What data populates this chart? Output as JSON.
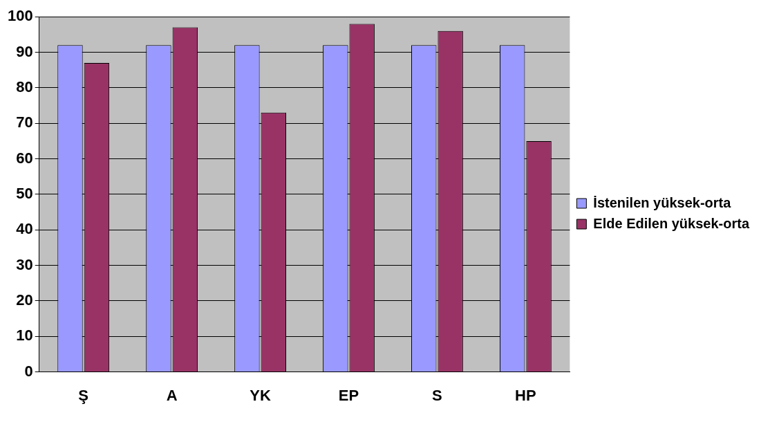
{
  "chart_data": {
    "type": "bar",
    "categories": [
      "Ş",
      "A",
      "YK",
      "EP",
      "S",
      "HP"
    ],
    "series": [
      {
        "name": "İstenilen yüksek-orta",
        "color": "#9999ff",
        "values": [
          92,
          92,
          92,
          92,
          92,
          92
        ]
      },
      {
        "name": "Elde Edilen yüksek-orta",
        "color": "#993366",
        "values": [
          87,
          97,
          73,
          98,
          96,
          65
        ]
      }
    ],
    "ylim": [
      0,
      100
    ],
    "yticks": [
      0,
      10,
      20,
      30,
      40,
      50,
      60,
      70,
      80,
      90,
      100
    ],
    "grid": "y",
    "legend": "right"
  }
}
